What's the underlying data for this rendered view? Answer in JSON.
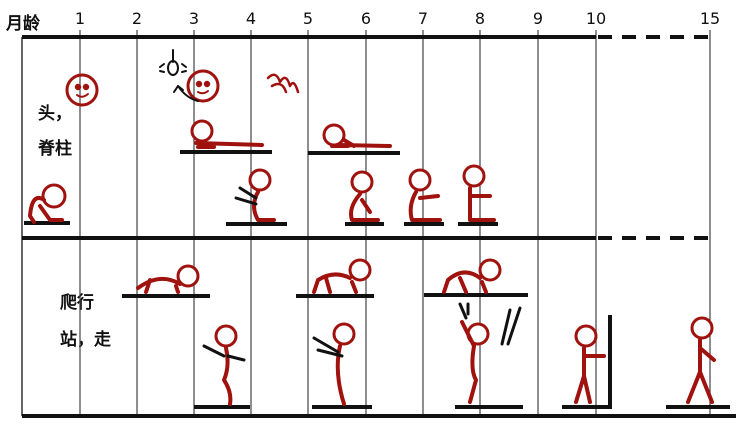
{
  "axis_title": "月龄",
  "months": [
    "1",
    "2",
    "3",
    "4",
    "5",
    "6",
    "7",
    "8",
    "9",
    "10",
    "15"
  ],
  "row_labels": {
    "head": "头，",
    "spine": "脊柱",
    "crawl": "爬行",
    "stand_walk": "站，走"
  },
  "colors": {
    "figure": "#a0120e",
    "line": "#111111",
    "background": "#ffffff"
  }
}
